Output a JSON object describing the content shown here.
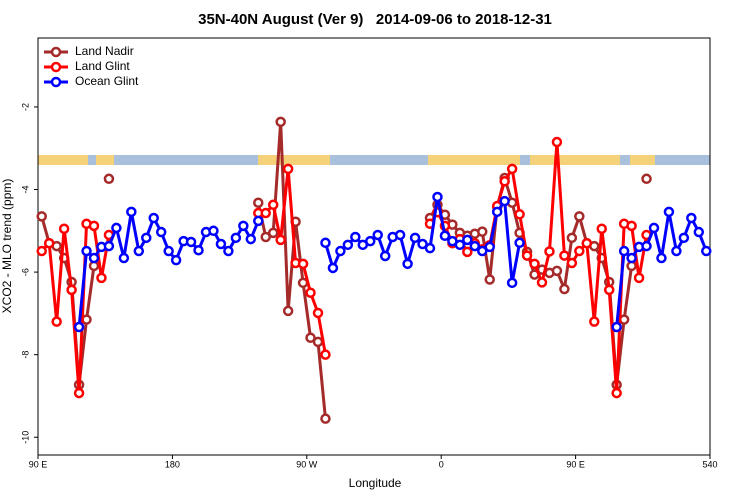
{
  "chart_data": {
    "type": "line",
    "title": "35N-40N August (Ver 9)   2014-09-06 to 2018-12-31",
    "x_label": "Longitude",
    "y_label": "XCO2 - MLO trend (ppm)",
    "xlim": [
      90,
      540
    ],
    "ylim": [
      -10.43,
      -0.33
    ],
    "xticks": [
      {
        "value": 90,
        "label": "90 E"
      },
      180,
      {
        "value": 270,
        "label": "90 W"
      },
      {
        "value": 360,
        "label": "0"
      },
      {
        "value": 450,
        "label": "90 E"
      },
      540
    ],
    "yticks": [
      -2,
      -4,
      -6,
      -8,
      -10
    ],
    "legend": "top-left",
    "series": [
      {
        "name": "Land Nadir",
        "color": "#a52a2a",
        "x": [
          92.5,
          97.5,
          102.5,
          107.5,
          112.5,
          117.5,
          122.5,
          127.5,
          132.5,
          137.5,
          142.5,
          237.5,
          242.5,
          247.5,
          252.5,
          257.5,
          262.5,
          267.5,
          272.5,
          277.5,
          282.5,
          287.5,
          352.5,
          357.5,
          362.5,
          367.5,
          372.5,
          377.5,
          382.5,
          387.5,
          392.5,
          397.5,
          402.5,
          407.5,
          412.5,
          417.5,
          422.5,
          427.5,
          432.5,
          437.5,
          442.5,
          447.5,
          452.5,
          457.5,
          462.5,
          467.5,
          472.5,
          477.5,
          482.5,
          487.5,
          492.5,
          497.5
        ],
        "values": [
          -4.65,
          -5.3,
          -5.37,
          -5.66,
          -6.24,
          -8.73,
          -7.15,
          -5.85,
          null,
          -3.74,
          null,
          -4.32,
          -5.15,
          -5.05,
          -2.36,
          -6.94,
          -4.78,
          -6.26,
          -7.59,
          -7.69,
          -9.55,
          null,
          -4.69,
          -4.37,
          -4.61,
          -4.85,
          -5.05,
          -5.12,
          -5.07,
          -5.02,
          -6.18,
          -4.42,
          -3.72,
          -4.32,
          -5.05,
          -5.51,
          -6.06,
          -5.94,
          -6.02,
          -5.97,
          -6.41,
          -5.17,
          -4.65,
          -5.3,
          -5.37,
          -5.66,
          -6.24,
          -8.73,
          -7.15,
          -5.85,
          null,
          -3.74
        ]
      },
      {
        "name": "Land Glint",
        "color": "#ff0000",
        "x": [
          92.5,
          97.5,
          102.5,
          107.5,
          112.5,
          117.5,
          122.5,
          127.5,
          132.5,
          137.5,
          142.5,
          237.5,
          242.5,
          247.5,
          252.5,
          257.5,
          262.5,
          267.5,
          272.5,
          277.5,
          282.5,
          287.5,
          352.5,
          357.5,
          362.5,
          367.5,
          372.5,
          377.5,
          382.5,
          387.5,
          392.5,
          397.5,
          402.5,
          407.5,
          412.5,
          417.5,
          422.5,
          427.5,
          432.5,
          437.5,
          442.5,
          447.5,
          452.5,
          457.5,
          462.5,
          467.5,
          472.5,
          477.5,
          482.5,
          487.5,
          492.5,
          497.5
        ],
        "values": [
          -5.49,
          -5.3,
          -7.2,
          -4.95,
          -6.43,
          -8.93,
          -4.83,
          -4.88,
          -6.14,
          -5.1,
          null,
          -4.57,
          -4.57,
          -4.37,
          -5.22,
          -3.5,
          -5.78,
          -5.8,
          -6.5,
          -6.99,
          -8.0,
          null,
          -4.83,
          -4.55,
          -4.88,
          -5.3,
          -5.2,
          -5.51,
          -5.3,
          -5.45,
          -5.35,
          -4.4,
          -3.8,
          -3.5,
          -4.6,
          -5.6,
          -5.8,
          -6.25,
          -5.5,
          -2.85,
          -5.6,
          -5.78,
          -5.49,
          -5.3,
          -7.2,
          -4.95,
          -6.43,
          -8.93,
          -4.83,
          -4.88,
          -6.14,
          -5.1
        ]
      },
      {
        "name": "Ocean Glint",
        "color": "#0000ff",
        "x": [
          117.5,
          122.5,
          127.5,
          132.5,
          137.5,
          142.5,
          147.5,
          152.5,
          157.5,
          162.5,
          167.5,
          172.5,
          177.5,
          182.5,
          187.5,
          192.5,
          197.5,
          202.5,
          207.5,
          212.5,
          217.5,
          222.5,
          227.5,
          232.5,
          237.5,
          242.5,
          282.5,
          287.5,
          292.5,
          297.5,
          302.5,
          307.5,
          312.5,
          317.5,
          322.5,
          327.5,
          332.5,
          337.5,
          342.5,
          347.5,
          352.5,
          357.5,
          362.5,
          367.5,
          372.5,
          377.5,
          382.5,
          387.5,
          392.5,
          397.5,
          402.5,
          407.5,
          412.5,
          417.5,
          477.5,
          482.5,
          487.5,
          492.5,
          497.5,
          502.5,
          507.5,
          512.5,
          517.5,
          522.5,
          527.5,
          532.5,
          537.5
        ],
        "values": [
          -7.33,
          -5.49,
          -5.66,
          -5.39,
          -5.37,
          -4.93,
          -5.66,
          -4.54,
          -5.49,
          -5.17,
          -4.69,
          -5.03,
          -5.49,
          -5.71,
          -5.25,
          -5.27,
          -5.47,
          -5.03,
          -5.0,
          -5.32,
          -5.49,
          -5.17,
          -4.88,
          -5.2,
          -4.76,
          null,
          -5.29,
          -5.9,
          -5.49,
          -5.34,
          -5.15,
          -5.34,
          -5.25,
          -5.1,
          -5.61,
          -5.15,
          -5.1,
          -5.8,
          -5.17,
          -5.32,
          -5.42,
          -4.18,
          -5.12,
          -5.25,
          -5.34,
          -5.22,
          -5.37,
          -5.49,
          -5.39,
          -4.54,
          -4.28,
          -6.26,
          -5.29,
          null,
          -7.33,
          -5.49,
          -5.66,
          -5.39,
          -5.37,
          -4.93,
          -5.66,
          -4.54,
          -5.49,
          -5.17,
          -4.69,
          -5.03,
          -5.49
        ]
      }
    ]
  }
}
